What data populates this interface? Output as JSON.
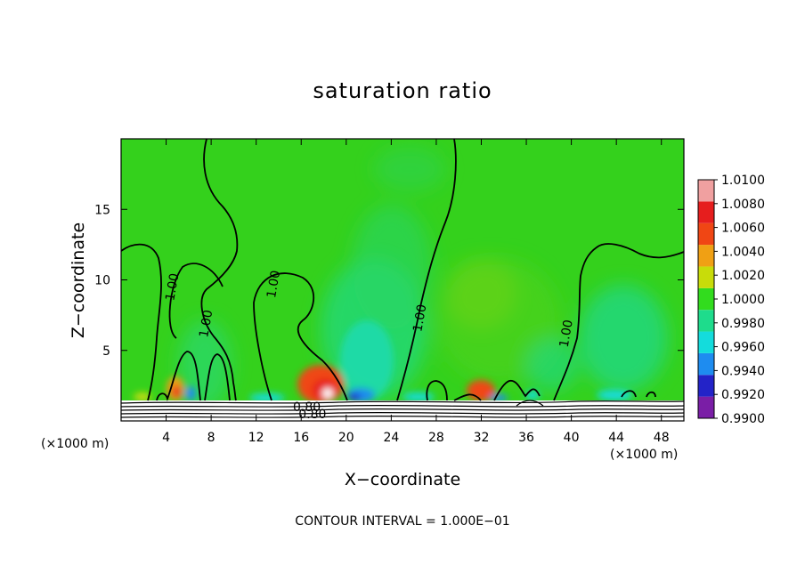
{
  "chart_data": {
    "type": "heatmap",
    "title": "saturation ratio",
    "xlabel": "X−coordinate",
    "ylabel": "Z−coordinate",
    "x_unit_label": "(×1000 m)",
    "footnote": "CONTOUR INTERVAL = 1.000E−01",
    "xlim": [
      0,
      50
    ],
    "ylim": [
      0,
      20
    ],
    "x_ticks": [
      4,
      8,
      12,
      16,
      20,
      24,
      28,
      32,
      36,
      40,
      44,
      48
    ],
    "x_tick_labels": [
      "4",
      "8",
      "12",
      "16",
      "20",
      "24",
      "28",
      "32",
      "36",
      "40",
      "44",
      "48"
    ],
    "y_ticks": [
      5,
      10,
      15
    ],
    "y_tick_labels": [
      "5",
      "10",
      "15"
    ],
    "colorbar": {
      "levels": [
        "0.9900",
        "0.9920",
        "0.9940",
        "0.9960",
        "0.9980",
        "1.0000",
        "1.0020",
        "1.0040",
        "1.0060",
        "1.0080",
        "1.0100"
      ],
      "colors": [
        "#7a1ea6",
        "#2323c8",
        "#1e8cf0",
        "#14dcdc",
        "#1edc8c",
        "#32dc1e",
        "#c8dc0a",
        "#f0a014",
        "#f04614",
        "#e61e1e",
        "#f0a0a0"
      ]
    },
    "background_value": 1.0,
    "features": [
      {
        "type": "maximum",
        "x": 17.5,
        "z": 1.5,
        "value": 1.01
      },
      {
        "type": "maximum",
        "x": 5,
        "z": 2,
        "value": 1.007
      },
      {
        "type": "maximum",
        "x": 31.5,
        "z": 2,
        "value": 1.007
      },
      {
        "type": "minimum",
        "x": 20,
        "z": 1.7,
        "value": 0.994
      },
      {
        "type": "region",
        "x": 22,
        "z": 6,
        "value": 0.9975
      }
    ],
    "contour_labels": [
      {
        "text": "1.00",
        "x": 4.5,
        "z": 9.5
      },
      {
        "text": "1.00",
        "x": 7.5,
        "z": 6.9
      },
      {
        "text": "1.00",
        "x": 13.5,
        "z": 9.7
      },
      {
        "text": "1.00",
        "x": 26.5,
        "z": 7.3
      },
      {
        "text": "1.00",
        "x": 39.5,
        "z": 6.2
      },
      {
        "text": "0.80",
        "x": 16.5,
        "z": 1.0
      },
      {
        "text": "0.80",
        "x": 17.0,
        "z": 0.5
      }
    ]
  }
}
